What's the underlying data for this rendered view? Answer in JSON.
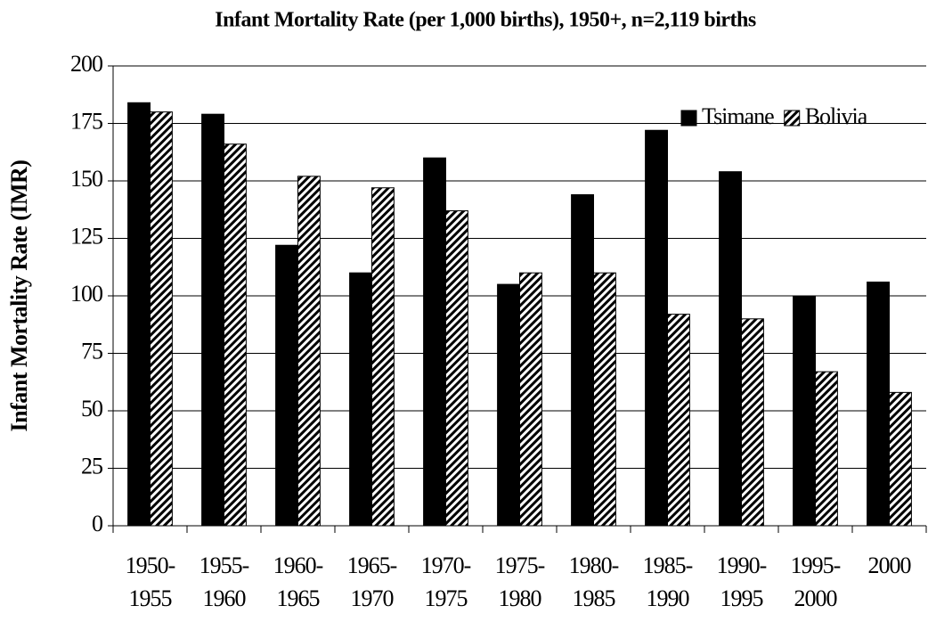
{
  "chart_data": {
    "type": "bar",
    "title": "Infant Mortality Rate (per 1,000 births), 1950+, n=2,119 births",
    "y_label": "Infant Mortality Rate (IMR)",
    "categories": [
      [
        "1950-",
        "1955"
      ],
      [
        "1955-",
        "1960"
      ],
      [
        "1960-",
        "1965"
      ],
      [
        "1965-",
        "1970"
      ],
      [
        "1970-",
        "1975"
      ],
      [
        "1975-",
        "1980"
      ],
      [
        "1980-",
        "1985"
      ],
      [
        "1985-",
        "1990"
      ],
      [
        "1990-",
        "1995"
      ],
      [
        "1995-",
        "2000"
      ],
      [
        "2000"
      ]
    ],
    "series": [
      {
        "name": "Tsimane",
        "color": "#000000",
        "hatch": false,
        "values": [
          184,
          179,
          122,
          110,
          160,
          105,
          144,
          172,
          154,
          100,
          106
        ]
      },
      {
        "name": "Bolivia",
        "color": "#000000",
        "hatch": true,
        "values": [
          180,
          166,
          152,
          147,
          137,
          110,
          110,
          92,
          90,
          67,
          58
        ]
      }
    ],
    "ylim": [
      0,
      200
    ],
    "yticks": [
      0,
      25,
      50,
      75,
      100,
      125,
      150,
      175,
      200
    ],
    "grid": true,
    "legend": "top-right"
  }
}
